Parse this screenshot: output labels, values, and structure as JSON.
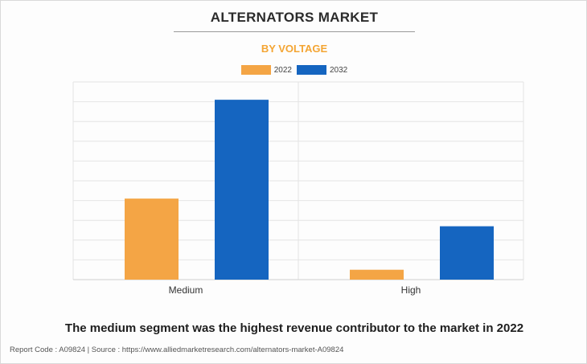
{
  "title": "ALTERNATORS MARKET",
  "subtitle": "BY VOLTAGE",
  "caption": "The medium segment was the highest revenue contributor to the market in 2022",
  "footer": "Report Code : A09824  |  Source : https://www.alliedmarketresearch.com/alternators-market-A09824",
  "colors": {
    "2022": "#f4a545",
    "2032": "#1565c0",
    "subtitle": "#f4a533"
  },
  "chart_data": {
    "type": "bar",
    "categories": [
      "Medium",
      "High"
    ],
    "series": [
      {
        "name": "2022",
        "values": [
          4.1,
          0.5
        ]
      },
      {
        "name": "2032",
        "values": [
          9.1,
          2.7
        ]
      }
    ],
    "ylim": [
      0,
      10
    ],
    "grid": true,
    "legend": "top-center"
  }
}
